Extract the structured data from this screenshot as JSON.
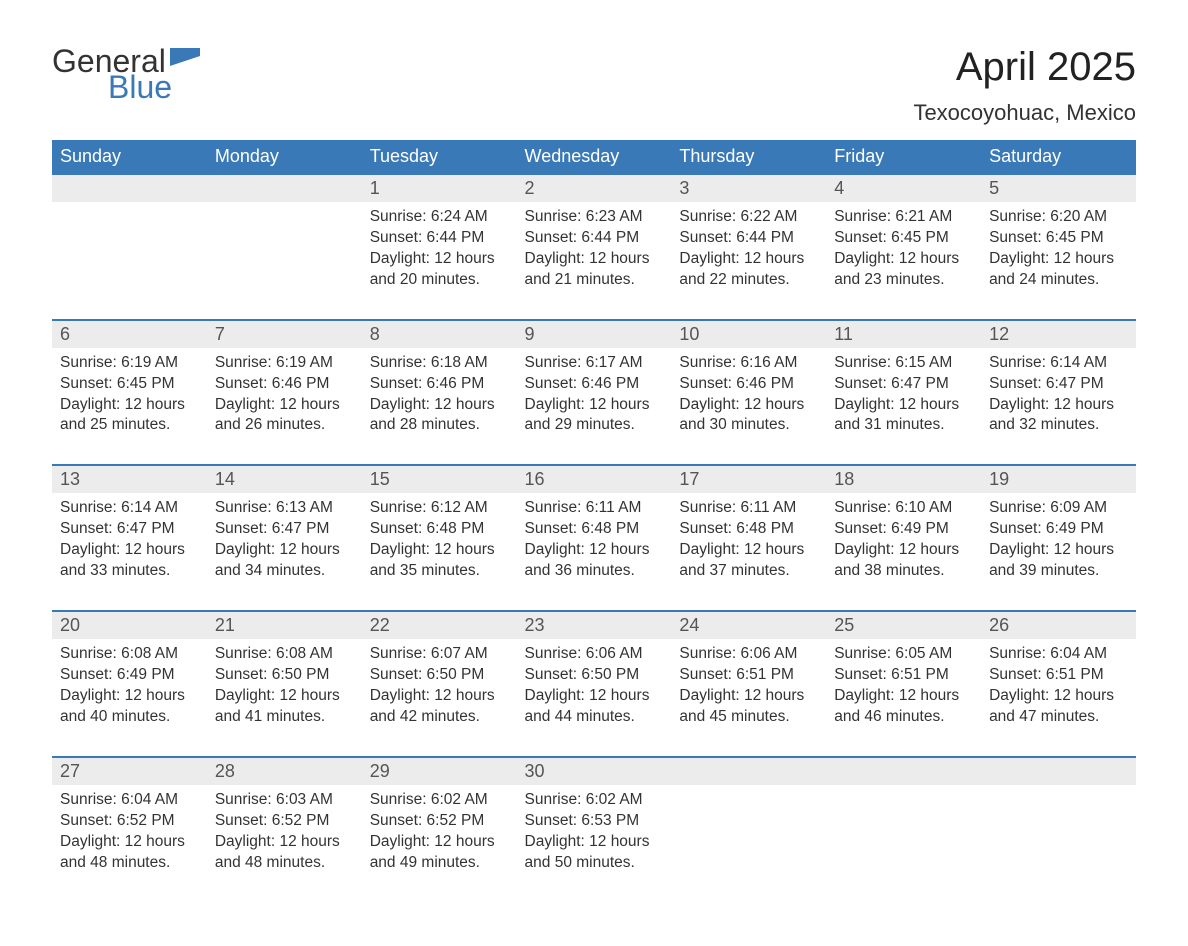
{
  "logo": {
    "text1": "General",
    "text2": "Blue",
    "flag_color": "#3a79b7"
  },
  "title": "April 2025",
  "location": "Texocoyohuac, Mexico",
  "colors": {
    "header_bg": "#3a79b7",
    "header_text": "#ffffff",
    "daynum_bg": "#ececec",
    "daynum_border": "#3a79b7",
    "body_text": "#333333",
    "page_bg": "#ffffff"
  },
  "typography": {
    "title_fontsize": 40,
    "location_fontsize": 22,
    "dayheader_fontsize": 18,
    "daynum_fontsize": 18,
    "cell_fontsize": 15.5
  },
  "day_headers": [
    "Sunday",
    "Monday",
    "Tuesday",
    "Wednesday",
    "Thursday",
    "Friday",
    "Saturday"
  ],
  "weeks": [
    [
      null,
      null,
      {
        "n": "1",
        "sr": "6:24 AM",
        "ss": "6:44 PM",
        "dl": "12 hours and 20 minutes."
      },
      {
        "n": "2",
        "sr": "6:23 AM",
        "ss": "6:44 PM",
        "dl": "12 hours and 21 minutes."
      },
      {
        "n": "3",
        "sr": "6:22 AM",
        "ss": "6:44 PM",
        "dl": "12 hours and 22 minutes."
      },
      {
        "n": "4",
        "sr": "6:21 AM",
        "ss": "6:45 PM",
        "dl": "12 hours and 23 minutes."
      },
      {
        "n": "5",
        "sr": "6:20 AM",
        "ss": "6:45 PM",
        "dl": "12 hours and 24 minutes."
      }
    ],
    [
      {
        "n": "6",
        "sr": "6:19 AM",
        "ss": "6:45 PM",
        "dl": "12 hours and 25 minutes."
      },
      {
        "n": "7",
        "sr": "6:19 AM",
        "ss": "6:46 PM",
        "dl": "12 hours and 26 minutes."
      },
      {
        "n": "8",
        "sr": "6:18 AM",
        "ss": "6:46 PM",
        "dl": "12 hours and 28 minutes."
      },
      {
        "n": "9",
        "sr": "6:17 AM",
        "ss": "6:46 PM",
        "dl": "12 hours and 29 minutes."
      },
      {
        "n": "10",
        "sr": "6:16 AM",
        "ss": "6:46 PM",
        "dl": "12 hours and 30 minutes."
      },
      {
        "n": "11",
        "sr": "6:15 AM",
        "ss": "6:47 PM",
        "dl": "12 hours and 31 minutes."
      },
      {
        "n": "12",
        "sr": "6:14 AM",
        "ss": "6:47 PM",
        "dl": "12 hours and 32 minutes."
      }
    ],
    [
      {
        "n": "13",
        "sr": "6:14 AM",
        "ss": "6:47 PM",
        "dl": "12 hours and 33 minutes."
      },
      {
        "n": "14",
        "sr": "6:13 AM",
        "ss": "6:47 PM",
        "dl": "12 hours and 34 minutes."
      },
      {
        "n": "15",
        "sr": "6:12 AM",
        "ss": "6:48 PM",
        "dl": "12 hours and 35 minutes."
      },
      {
        "n": "16",
        "sr": "6:11 AM",
        "ss": "6:48 PM",
        "dl": "12 hours and 36 minutes."
      },
      {
        "n": "17",
        "sr": "6:11 AM",
        "ss": "6:48 PM",
        "dl": "12 hours and 37 minutes."
      },
      {
        "n": "18",
        "sr": "6:10 AM",
        "ss": "6:49 PM",
        "dl": "12 hours and 38 minutes."
      },
      {
        "n": "19",
        "sr": "6:09 AM",
        "ss": "6:49 PM",
        "dl": "12 hours and 39 minutes."
      }
    ],
    [
      {
        "n": "20",
        "sr": "6:08 AM",
        "ss": "6:49 PM",
        "dl": "12 hours and 40 minutes."
      },
      {
        "n": "21",
        "sr": "6:08 AM",
        "ss": "6:50 PM",
        "dl": "12 hours and 41 minutes."
      },
      {
        "n": "22",
        "sr": "6:07 AM",
        "ss": "6:50 PM",
        "dl": "12 hours and 42 minutes."
      },
      {
        "n": "23",
        "sr": "6:06 AM",
        "ss": "6:50 PM",
        "dl": "12 hours and 44 minutes."
      },
      {
        "n": "24",
        "sr": "6:06 AM",
        "ss": "6:51 PM",
        "dl": "12 hours and 45 minutes."
      },
      {
        "n": "25",
        "sr": "6:05 AM",
        "ss": "6:51 PM",
        "dl": "12 hours and 46 minutes."
      },
      {
        "n": "26",
        "sr": "6:04 AM",
        "ss": "6:51 PM",
        "dl": "12 hours and 47 minutes."
      }
    ],
    [
      {
        "n": "27",
        "sr": "6:04 AM",
        "ss": "6:52 PM",
        "dl": "12 hours and 48 minutes."
      },
      {
        "n": "28",
        "sr": "6:03 AM",
        "ss": "6:52 PM",
        "dl": "12 hours and 48 minutes."
      },
      {
        "n": "29",
        "sr": "6:02 AM",
        "ss": "6:52 PM",
        "dl": "12 hours and 49 minutes."
      },
      {
        "n": "30",
        "sr": "6:02 AM",
        "ss": "6:53 PM",
        "dl": "12 hours and 50 minutes."
      },
      null,
      null,
      null
    ]
  ],
  "labels": {
    "sunrise": "Sunrise: ",
    "sunset": "Sunset: ",
    "daylight": "Daylight: "
  }
}
